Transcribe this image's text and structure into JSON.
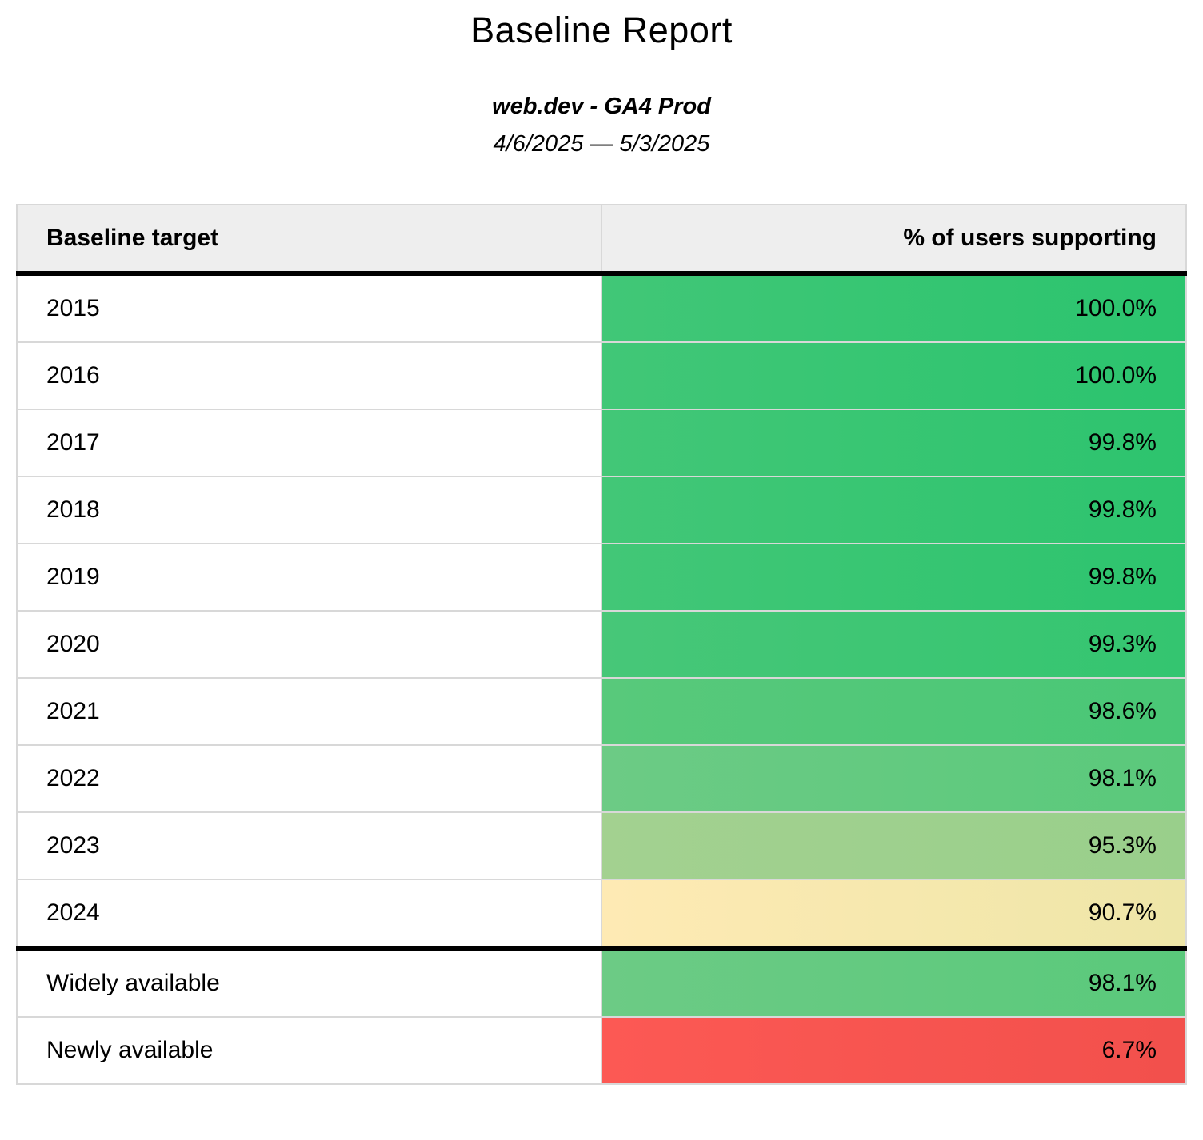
{
  "report": {
    "title": "Baseline Report",
    "subtitle": "web.dev - GA4 Prod",
    "date_range": "4/6/2025 — 5/3/2025"
  },
  "table": {
    "columns": {
      "target": "Baseline target",
      "percent": "% of users supporting"
    },
    "rows": [
      {
        "target": "2015",
        "percent": "100.0%",
        "color_left": "#41c777",
        "color_right": "#2bc46e",
        "thick_border_below": false
      },
      {
        "target": "2016",
        "percent": "100.0%",
        "color_left": "#41c777",
        "color_right": "#2bc46e",
        "thick_border_below": false
      },
      {
        "target": "2017",
        "percent": "99.8%",
        "color_left": "#42c777",
        "color_right": "#2dc46e",
        "thick_border_below": false
      },
      {
        "target": "2018",
        "percent": "99.8%",
        "color_left": "#42c777",
        "color_right": "#2dc46e",
        "thick_border_below": false
      },
      {
        "target": "2019",
        "percent": "99.8%",
        "color_left": "#42c777",
        "color_right": "#2dc46e",
        "thick_border_below": false
      },
      {
        "target": "2020",
        "percent": "99.3%",
        "color_left": "#47c778",
        "color_right": "#34c570",
        "thick_border_below": false
      },
      {
        "target": "2021",
        "percent": "98.6%",
        "color_left": "#58c97b",
        "color_right": "#49c776",
        "thick_border_below": false
      },
      {
        "target": "2022",
        "percent": "98.1%",
        "color_left": "#6ccb85",
        "color_right": "#5ac97b",
        "thick_border_below": false
      },
      {
        "target": "2023",
        "percent": "95.3%",
        "color_left": "#a3d190",
        "color_right": "#99cf8b",
        "thick_border_below": false
      },
      {
        "target": "2024",
        "percent": "90.7%",
        "color_left": "#feeab4",
        "color_right": "#eee6a8",
        "thick_border_below": true
      },
      {
        "target": "Widely available",
        "percent": "98.1%",
        "color_left": "#6ccb85",
        "color_right": "#5ac97b",
        "thick_border_below": false
      },
      {
        "target": "Newly available",
        "percent": "6.7%",
        "color_left": "#fc5954",
        "color_right": "#f2504c",
        "thick_border_below": false
      }
    ]
  },
  "colors": {
    "header_background": "#eeeeee",
    "grid_border": "#d8d8d8",
    "divider": "#000000",
    "text": "#000000"
  },
  "chart_data": {
    "type": "table",
    "title": "Baseline Report",
    "subtitle": "web.dev - GA4 Prod",
    "date_range": "4/6/2025 — 5/3/2025",
    "columns": [
      "Baseline target",
      "% of users supporting"
    ],
    "categories": [
      "2015",
      "2016",
      "2017",
      "2018",
      "2019",
      "2020",
      "2021",
      "2022",
      "2023",
      "2024",
      "Widely available",
      "Newly available"
    ],
    "values": [
      100.0,
      100.0,
      99.8,
      99.8,
      99.8,
      99.3,
      98.6,
      98.1,
      95.3,
      90.7,
      98.1,
      6.7
    ],
    "value_unit": "%",
    "layout_hints": {
      "percent_column_alignment": "right",
      "cell_color_scale": "green (high) → yellow (mid) → red (low) heatmap on percent column",
      "thick_black_rule_after": [
        "header",
        "2024"
      ]
    }
  }
}
